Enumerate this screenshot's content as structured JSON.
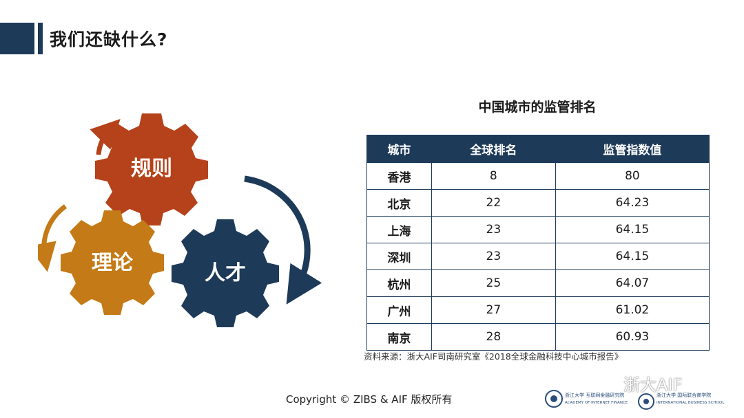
{
  "header": {
    "title": "我们还缺什么?"
  },
  "gears": {
    "rules": {
      "label": "规则",
      "color": "#b5421a"
    },
    "theory": {
      "label": "理论",
      "color": "#c47a16"
    },
    "talent": {
      "label": "人才",
      "color": "#1d3a58"
    }
  },
  "table": {
    "title": "中国城市的监管排名",
    "columns": [
      "城市",
      "全球排名",
      "监管指数值"
    ],
    "rows": [
      [
        "香港",
        "8",
        "80"
      ],
      [
        "北京",
        "22",
        "64.23"
      ],
      [
        "上海",
        "23",
        "64.15"
      ],
      [
        "深圳",
        "23",
        "64.15"
      ],
      [
        "杭州",
        "25",
        "64.07"
      ],
      [
        "广州",
        "27",
        "61.02"
      ],
      [
        "南京",
        "28",
        "60.93"
      ]
    ],
    "header_color": "#1d3a58"
  },
  "source": "资料来源：浙大AIF司南研究室《2018全球金融科技中心城市报告》",
  "footer": {
    "copyright": "Copyright © ZIBS & AIF 版权所有",
    "watermark": "浙大AIF",
    "logo1_cn": "浙江大学 互联网金融研究院",
    "logo1_en": "ACADEMY OF INTERNET FINANCE",
    "logo2_cn": "浙江大学 国际联合商学院",
    "logo2_en": "INTERNATIONAL BUSINESS SCHOOL"
  }
}
